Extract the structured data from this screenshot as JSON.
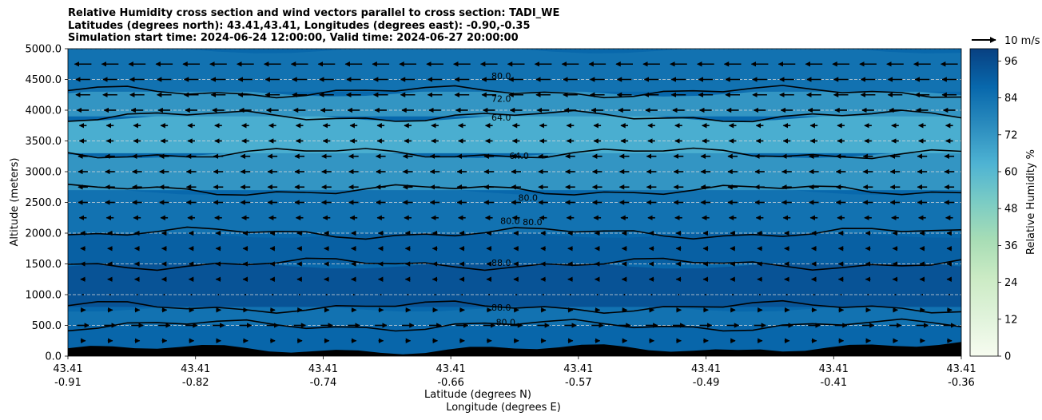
{
  "chart_data": {
    "type": "contour",
    "title_lines": [
      "Relative Humidity cross section and wind vectors parallel to cross section: TADI_WE",
      "Latitudes (degrees north): 43.41,43.41, Longitudes (degrees east): -0.90,-0.35",
      "Simulation start time: 2024-06-24 12:00:00, Valid time: 2024-06-27 20:00:00"
    ],
    "ylabel": "Altitude (meters)",
    "xlabel_lat": "Latitude (degrees N)",
    "xlabel_lon": "Longitude (degrees E)",
    "ylim": [
      0,
      5000
    ],
    "yticks": [
      "0.0",
      "500.0",
      "1000.0",
      "1500.0",
      "2000.0",
      "2500.0",
      "3000.0",
      "3500.0",
      "4000.0",
      "4500.0",
      "5000.0"
    ],
    "xticks": [
      {
        "lat": "43.41",
        "lon": "-0.91"
      },
      {
        "lat": "43.41",
        "lon": "-0.82"
      },
      {
        "lat": "43.41",
        "lon": "-0.74"
      },
      {
        "lat": "43.41",
        "lon": "-0.66"
      },
      {
        "lat": "43.41",
        "lon": "-0.57"
      },
      {
        "lat": "43.41",
        "lon": "-0.49"
      },
      {
        "lat": "43.41",
        "lon": "-0.41"
      },
      {
        "lat": "43.41",
        "lon": "-0.36"
      }
    ],
    "colorbar": {
      "label": "Relative Humidity %",
      "ticks": [
        "0",
        "12",
        "24",
        "36",
        "48",
        "60",
        "72",
        "84",
        "96"
      ],
      "range": [
        0,
        100
      ]
    },
    "quiver_key": "10 m/s",
    "rh_bands": [
      {
        "z0": 0,
        "z1": 500,
        "rh": 88
      },
      {
        "z0": 500,
        "z1": 800,
        "rh": 84
      },
      {
        "z0": 800,
        "z1": 1500,
        "rh": 94
      },
      {
        "z0": 1500,
        "z1": 2000,
        "rh": 90
      },
      {
        "z0": 2000,
        "z1": 2700,
        "rh": 84
      },
      {
        "z0": 2700,
        "z1": 3300,
        "rh": 72
      },
      {
        "z0": 3300,
        "z1": 3900,
        "rh": 64
      },
      {
        "z0": 3900,
        "z1": 4300,
        "rh": 72
      },
      {
        "z0": 4300,
        "z1": 5000,
        "rh": 84
      }
    ],
    "contour_labels": [
      {
        "text": "80.0",
        "x": 0.485,
        "z": 4560
      },
      {
        "text": "72.0",
        "x": 0.485,
        "z": 4190
      },
      {
        "text": "64.0",
        "x": 0.485,
        "z": 3880
      },
      {
        "text": "64.0",
        "x": 0.505,
        "z": 3260
      },
      {
        "text": "80.0",
        "x": 0.515,
        "z": 2580
      },
      {
        "text": "80.0",
        "x": 0.495,
        "z": 2200
      },
      {
        "text": "80.0",
        "x": 0.52,
        "z": 2180
      },
      {
        "text": "88.0",
        "x": 0.485,
        "z": 1520
      },
      {
        "text": "88.0",
        "x": 0.485,
        "z": 790
      },
      {
        "text": "80.0",
        "x": 0.49,
        "z": 550
      }
    ],
    "wind_u_profile": [
      {
        "z": 250,
        "u": 2
      },
      {
        "z": 500,
        "u": 5
      },
      {
        "z": 750,
        "u": 2
      },
      {
        "z": 1000,
        "u": 0
      },
      {
        "z": 1250,
        "u": -2
      },
      {
        "z": 1500,
        "u": -2
      },
      {
        "z": 1750,
        "u": -2
      },
      {
        "z": 2000,
        "u": -2
      },
      {
        "z": 2250,
        "u": -3
      },
      {
        "z": 2500,
        "u": -4
      },
      {
        "z": 2750,
        "u": -4
      },
      {
        "z": 3000,
        "u": -4
      },
      {
        "z": 3250,
        "u": -4
      },
      {
        "z": 3500,
        "u": -3
      },
      {
        "z": 3750,
        "u": -3
      },
      {
        "z": 4000,
        "u": -5
      },
      {
        "z": 4250,
        "u": -6
      },
      {
        "z": 4500,
        "u": -6
      },
      {
        "z": 4750,
        "u": -7
      }
    ]
  },
  "colors": {
    "colormap": [
      "#f7fcf0",
      "#e0f3db",
      "#ccebc5",
      "#a8ddb5",
      "#7bccc4",
      "#4eb3d3",
      "#2b8cbe",
      "#0868ac",
      "#084081"
    ],
    "terrain": "#000000",
    "grid": "#d9d9d9",
    "contour": "#000000"
  }
}
